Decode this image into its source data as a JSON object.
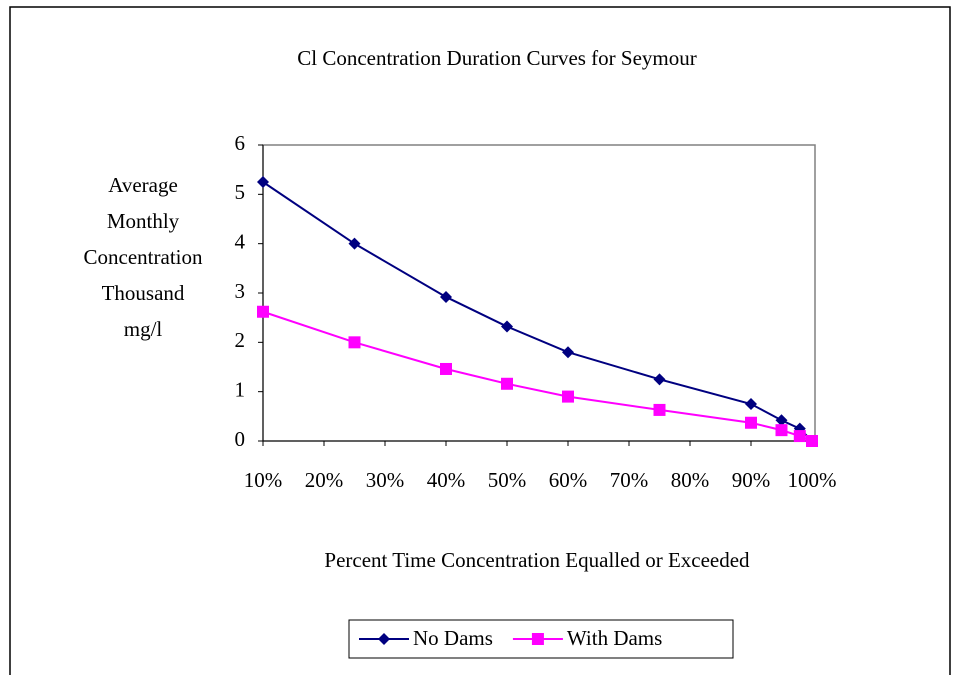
{
  "chart_data": {
    "type": "line",
    "title": "Cl Concentration Duration Curves for Seymour",
    "y_label": [
      "Average",
      "Monthly",
      "Concentration",
      "Thousand",
      "mg/l"
    ],
    "x_label": "Percent Time Concentration Equalled or Exceeded",
    "x": [
      10,
      25,
      40,
      50,
      60,
      75,
      90,
      95,
      98,
      100
    ],
    "series": [
      {
        "name": "No Dams",
        "color": "#000080",
        "marker": "diamond",
        "values": [
          5.25,
          4.0,
          2.92,
          2.32,
          1.8,
          1.25,
          0.75,
          0.42,
          0.25,
          0.0
        ]
      },
      {
        "name": "With Dams",
        "color": "#ff00ff",
        "marker": "square",
        "values": [
          2.62,
          2.0,
          1.46,
          1.16,
          0.9,
          0.63,
          0.37,
          0.22,
          0.1,
          0.0
        ]
      }
    ],
    "xlim": [
      10,
      100
    ],
    "xticks": [
      {
        "value": 10,
        "label": "10%"
      },
      {
        "value": 20,
        "label": "20%"
      },
      {
        "value": 30,
        "label": "30%"
      },
      {
        "value": 40,
        "label": "40%"
      },
      {
        "value": 50,
        "label": "50%"
      },
      {
        "value": 60,
        "label": "60%"
      },
      {
        "value": 70,
        "label": "70%"
      },
      {
        "value": 80,
        "label": "80%"
      },
      {
        "value": 90,
        "label": "90%"
      },
      {
        "value": 100,
        "label": "100%"
      }
    ],
    "ylim": [
      0,
      6
    ],
    "yticks": [
      0,
      1,
      2,
      3,
      4,
      5,
      6
    ],
    "legend": "bottom"
  }
}
